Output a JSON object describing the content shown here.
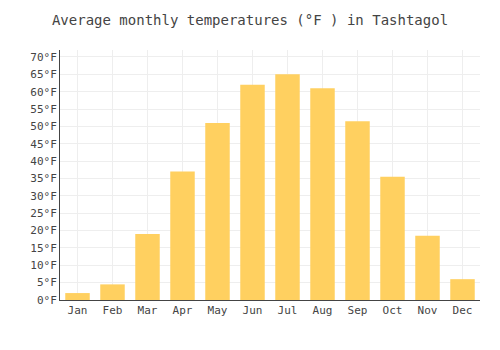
{
  "chart_data": {
    "type": "bar",
    "title": "Average monthly temperatures (°F ) in Tashtagol",
    "categories": [
      "Jan",
      "Feb",
      "Mar",
      "Apr",
      "May",
      "Jun",
      "Jul",
      "Aug",
      "Sep",
      "Oct",
      "Nov",
      "Dec"
    ],
    "values": [
      2,
      4.5,
      19,
      37,
      51,
      62,
      65,
      61,
      51.5,
      35.5,
      18.5,
      6
    ],
    "color": "#FFD060",
    "ylim": [
      0,
      72
    ],
    "yticks": [
      {
        "value": 0,
        "label": "0°F"
      },
      {
        "value": 5,
        "label": "5°F"
      },
      {
        "value": 10,
        "label": "10°F"
      },
      {
        "value": 15,
        "label": "15°F"
      },
      {
        "value": 20,
        "label": "20°F"
      },
      {
        "value": 25,
        "label": "25°F"
      },
      {
        "value": 30,
        "label": "30°F"
      },
      {
        "value": 35,
        "label": "35°F"
      },
      {
        "value": 40,
        "label": "40°F"
      },
      {
        "value": 45,
        "label": "45°F"
      },
      {
        "value": 50,
        "label": "50°F"
      },
      {
        "value": 55,
        "label": "55°F"
      },
      {
        "value": 60,
        "label": "60°F"
      },
      {
        "value": 65,
        "label": "65°F"
      },
      {
        "value": 70,
        "label": "70°F"
      }
    ],
    "grid": true
  }
}
